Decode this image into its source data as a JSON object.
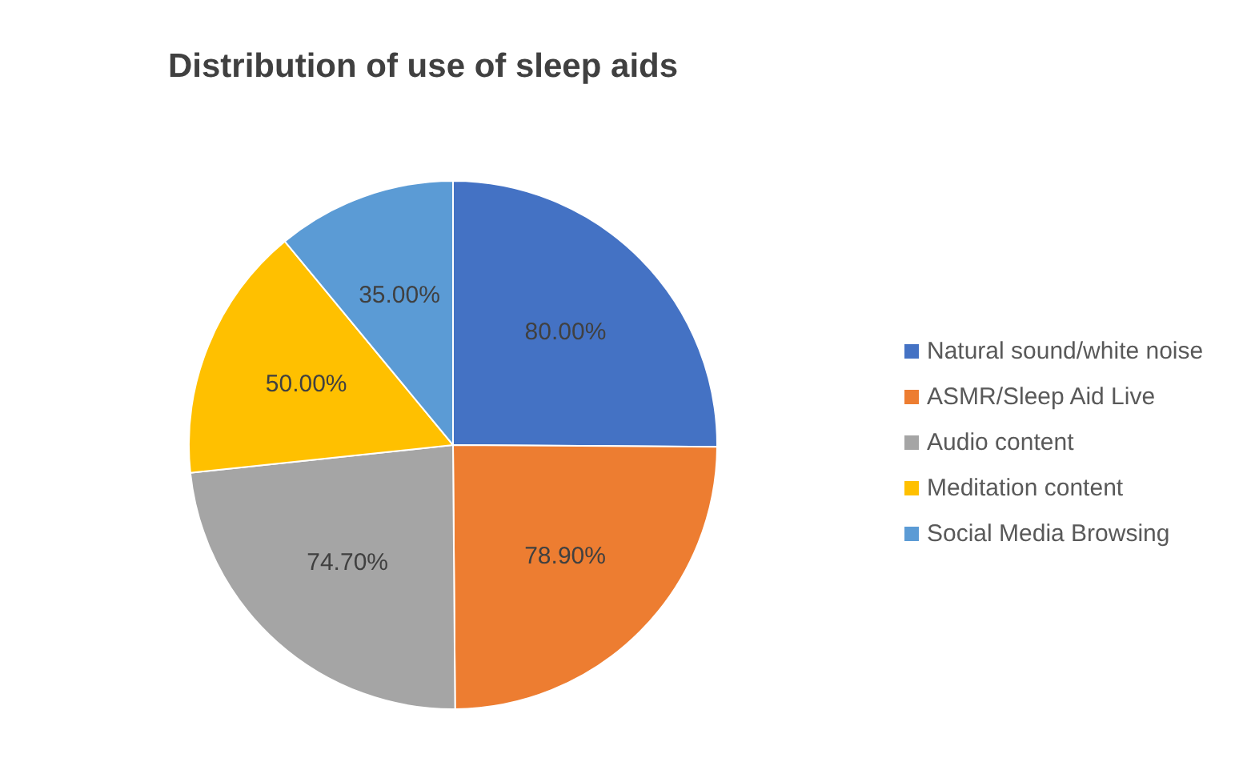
{
  "chart_data": {
    "type": "pie",
    "title": "Distribution of use of sleep aids",
    "categories": [
      "Natural sound/white noise",
      "ASMR/Sleep Aid Live",
      "Audio content",
      "Meditation content",
      "Social Media Browsing"
    ],
    "values": [
      80,
      78.9,
      74.7,
      50,
      35
    ],
    "value_labels": [
      "80.00%",
      "78.90%",
      "74.70%",
      "50.00%",
      "35.00%"
    ],
    "colors": [
      "#4472c4",
      "#ed7d31",
      "#a5a5a5",
      "#ffc000",
      "#5b9bd5"
    ],
    "legend": "right"
  }
}
